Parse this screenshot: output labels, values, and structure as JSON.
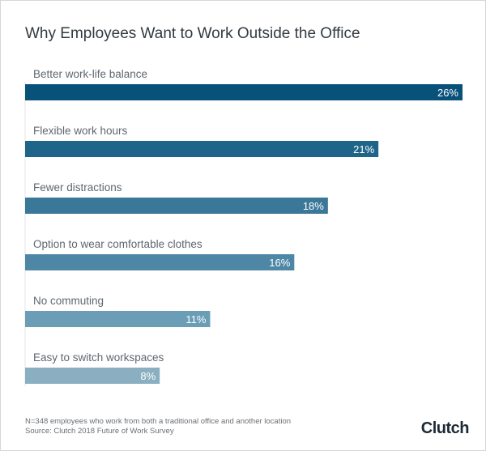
{
  "chart_data": {
    "type": "bar",
    "orientation": "horizontal",
    "title": "Why Employees Want to Work Outside the Office",
    "categories": [
      "Better work-life balance",
      "Flexible work hours",
      "Fewer distractions",
      "Option to wear comfortable clothes",
      "No commuting",
      "Easy to switch workspaces"
    ],
    "values": [
      26,
      21,
      18,
      16,
      11,
      8
    ],
    "value_labels": [
      "26%",
      "21%",
      "18%",
      "16%",
      "11%",
      "8%"
    ],
    "colors": [
      "#08527a",
      "#1f6589",
      "#3a7799",
      "#4e87a6",
      "#6b9db7",
      "#8aafc0"
    ],
    "xlabel": "",
    "ylabel": "",
    "grid": false
  },
  "footnote": {
    "sample": "N=348 employees who work from both a traditional office and another location",
    "source": "Source: Clutch 2018 Future of Work Survey"
  },
  "logo": "Clutch",
  "accent": "#ef4335"
}
